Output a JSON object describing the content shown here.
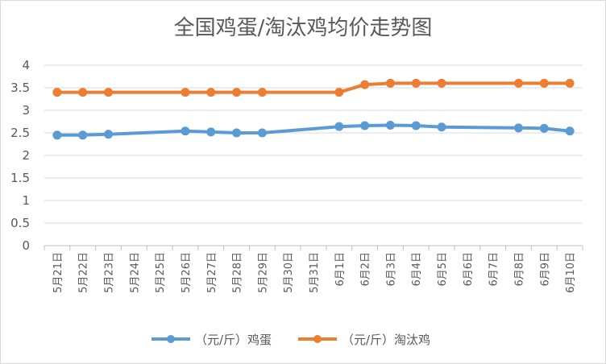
{
  "chart_data": {
    "type": "line",
    "title": "全国鸡蛋/淘汰鸡均价走势图",
    "categories": [
      "5月21日",
      "5月22日",
      "5月23日",
      "5月24日",
      "5月25日",
      "5月26日",
      "5月27日",
      "5月28日",
      "5月29日",
      "5月30日",
      "5月31日",
      "6月1日",
      "6月2日",
      "6月3日",
      "6月4日",
      "6月5日",
      "6月6日",
      "6月7日",
      "6月8日",
      "6月9日",
      "6月10日"
    ],
    "y_ticks": [
      "0",
      "0.5",
      "1",
      "1.5",
      "2",
      "2.5",
      "3",
      "3.5",
      "4"
    ],
    "ylim": [
      0,
      4
    ],
    "grid": true,
    "legend_position": "bottom",
    "series": [
      {
        "name": "（元/斤）鸡蛋",
        "color": "#5b9bd5",
        "values": [
          2.45,
          2.45,
          2.47,
          null,
          null,
          2.54,
          2.52,
          2.5,
          2.5,
          null,
          null,
          2.64,
          2.66,
          2.67,
          2.66,
          2.63,
          null,
          null,
          2.61,
          2.6,
          2.54
        ]
      },
      {
        "name": "（元/斤）淘汰鸡",
        "color": "#ed7d31",
        "values": [
          3.4,
          3.4,
          3.4,
          null,
          null,
          3.4,
          3.4,
          3.4,
          3.4,
          null,
          null,
          3.4,
          3.57,
          3.6,
          3.6,
          3.6,
          null,
          null,
          3.6,
          3.6,
          3.6
        ]
      }
    ]
  }
}
